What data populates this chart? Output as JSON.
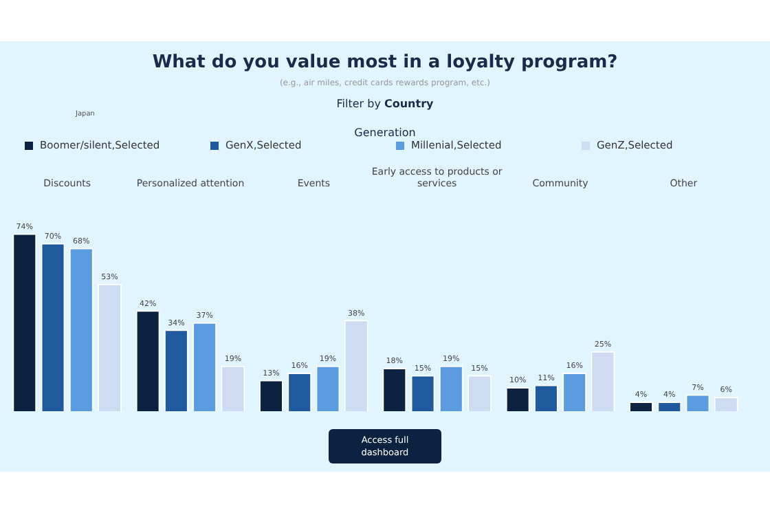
{
  "chart_data": {
    "type": "bar",
    "title": "What do you value most in a loyalty program?",
    "subtitle": "(e.g., air miles, credit cards rewards program, etc.)",
    "legend_title": "Generation",
    "legend": "top",
    "grid": false,
    "annotations": [
      "Filter by Country",
      "Japan",
      "Access full dashboard"
    ],
    "categories": [
      "Discounts",
      "Personalized attention",
      "Events",
      "Early access to products or services",
      "Community",
      "Other"
    ],
    "series": [
      {
        "name": "Boomer/silent,Selected",
        "color": "#0d2240",
        "values": [
          74,
          42,
          13,
          18,
          10,
          4
        ],
        "value_labels": [
          "74%",
          "42%",
          "13%",
          "18%",
          "10%",
          "4%"
        ]
      },
      {
        "name": "GenX,Selected",
        "color": "#1f5a9e",
        "values": [
          70,
          34,
          16,
          15,
          11,
          4
        ],
        "value_labels": [
          "70%",
          "34%",
          "16%",
          "15%",
          "11%",
          "4%"
        ]
      },
      {
        "name": "Millenial,Selected",
        "color": "#5b9be0",
        "values": [
          68,
          37,
          19,
          19,
          16,
          7
        ],
        "value_labels": [
          "68%",
          "37%",
          "19%",
          "19%",
          "16%",
          "7%"
        ]
      },
      {
        "name": "GenZ,Selected",
        "color": "#cddcf2",
        "values": [
          53,
          19,
          38,
          15,
          25,
          6
        ],
        "value_labels": [
          "53%",
          "19%",
          "38%",
          "15%",
          "25%",
          "6%"
        ]
      }
    ]
  }
}
